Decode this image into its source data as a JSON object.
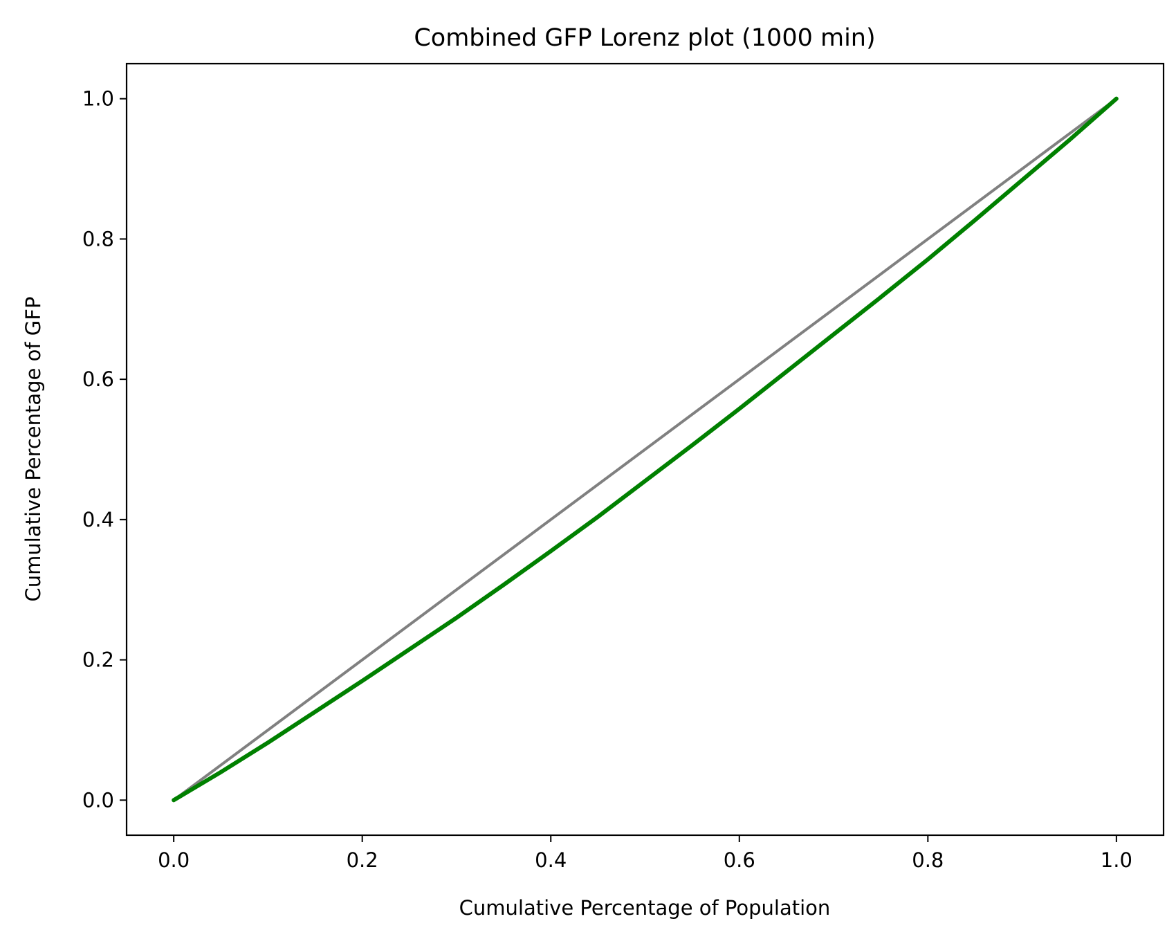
{
  "chart_data": {
    "type": "line",
    "title": "Combined GFP Lorenz plot (1000 min)",
    "xlabel": "Cumulative Percentage of Population",
    "ylabel": "Cumulative Percentage of GFP",
    "xlim": [
      -0.05,
      1.05
    ],
    "ylim": [
      -0.05,
      1.05
    ],
    "xticks": [
      0.0,
      0.2,
      0.4,
      0.6,
      0.8,
      1.0
    ],
    "yticks": [
      0.0,
      0.2,
      0.4,
      0.6,
      0.8,
      1.0
    ],
    "xtick_labels": [
      "0.0",
      "0.2",
      "0.4",
      "0.6",
      "0.8",
      "1.0"
    ],
    "ytick_labels": [
      "0.0",
      "0.2",
      "0.4",
      "0.6",
      "0.8",
      "1.0"
    ],
    "grid": false,
    "legend": "none",
    "series": [
      {
        "color": "#808080",
        "x": [
          0.0,
          1.0
        ],
        "y": [
          0.0,
          1.0
        ]
      },
      {
        "color": "#008000",
        "x": [
          0.0,
          0.05,
          0.1,
          0.15,
          0.2,
          0.25,
          0.3,
          0.35,
          0.4,
          0.45,
          0.5,
          0.55,
          0.6,
          0.65,
          0.7,
          0.75,
          0.8,
          0.85,
          0.9,
          0.95,
          1.0
        ],
        "y": [
          0.0,
          0.04,
          0.082,
          0.126,
          0.17,
          0.215,
          0.26,
          0.307,
          0.355,
          0.404,
          0.455,
          0.506,
          0.558,
          0.611,
          0.664,
          0.717,
          0.771,
          0.827,
          0.884,
          0.941,
          1.0
        ]
      }
    ]
  }
}
